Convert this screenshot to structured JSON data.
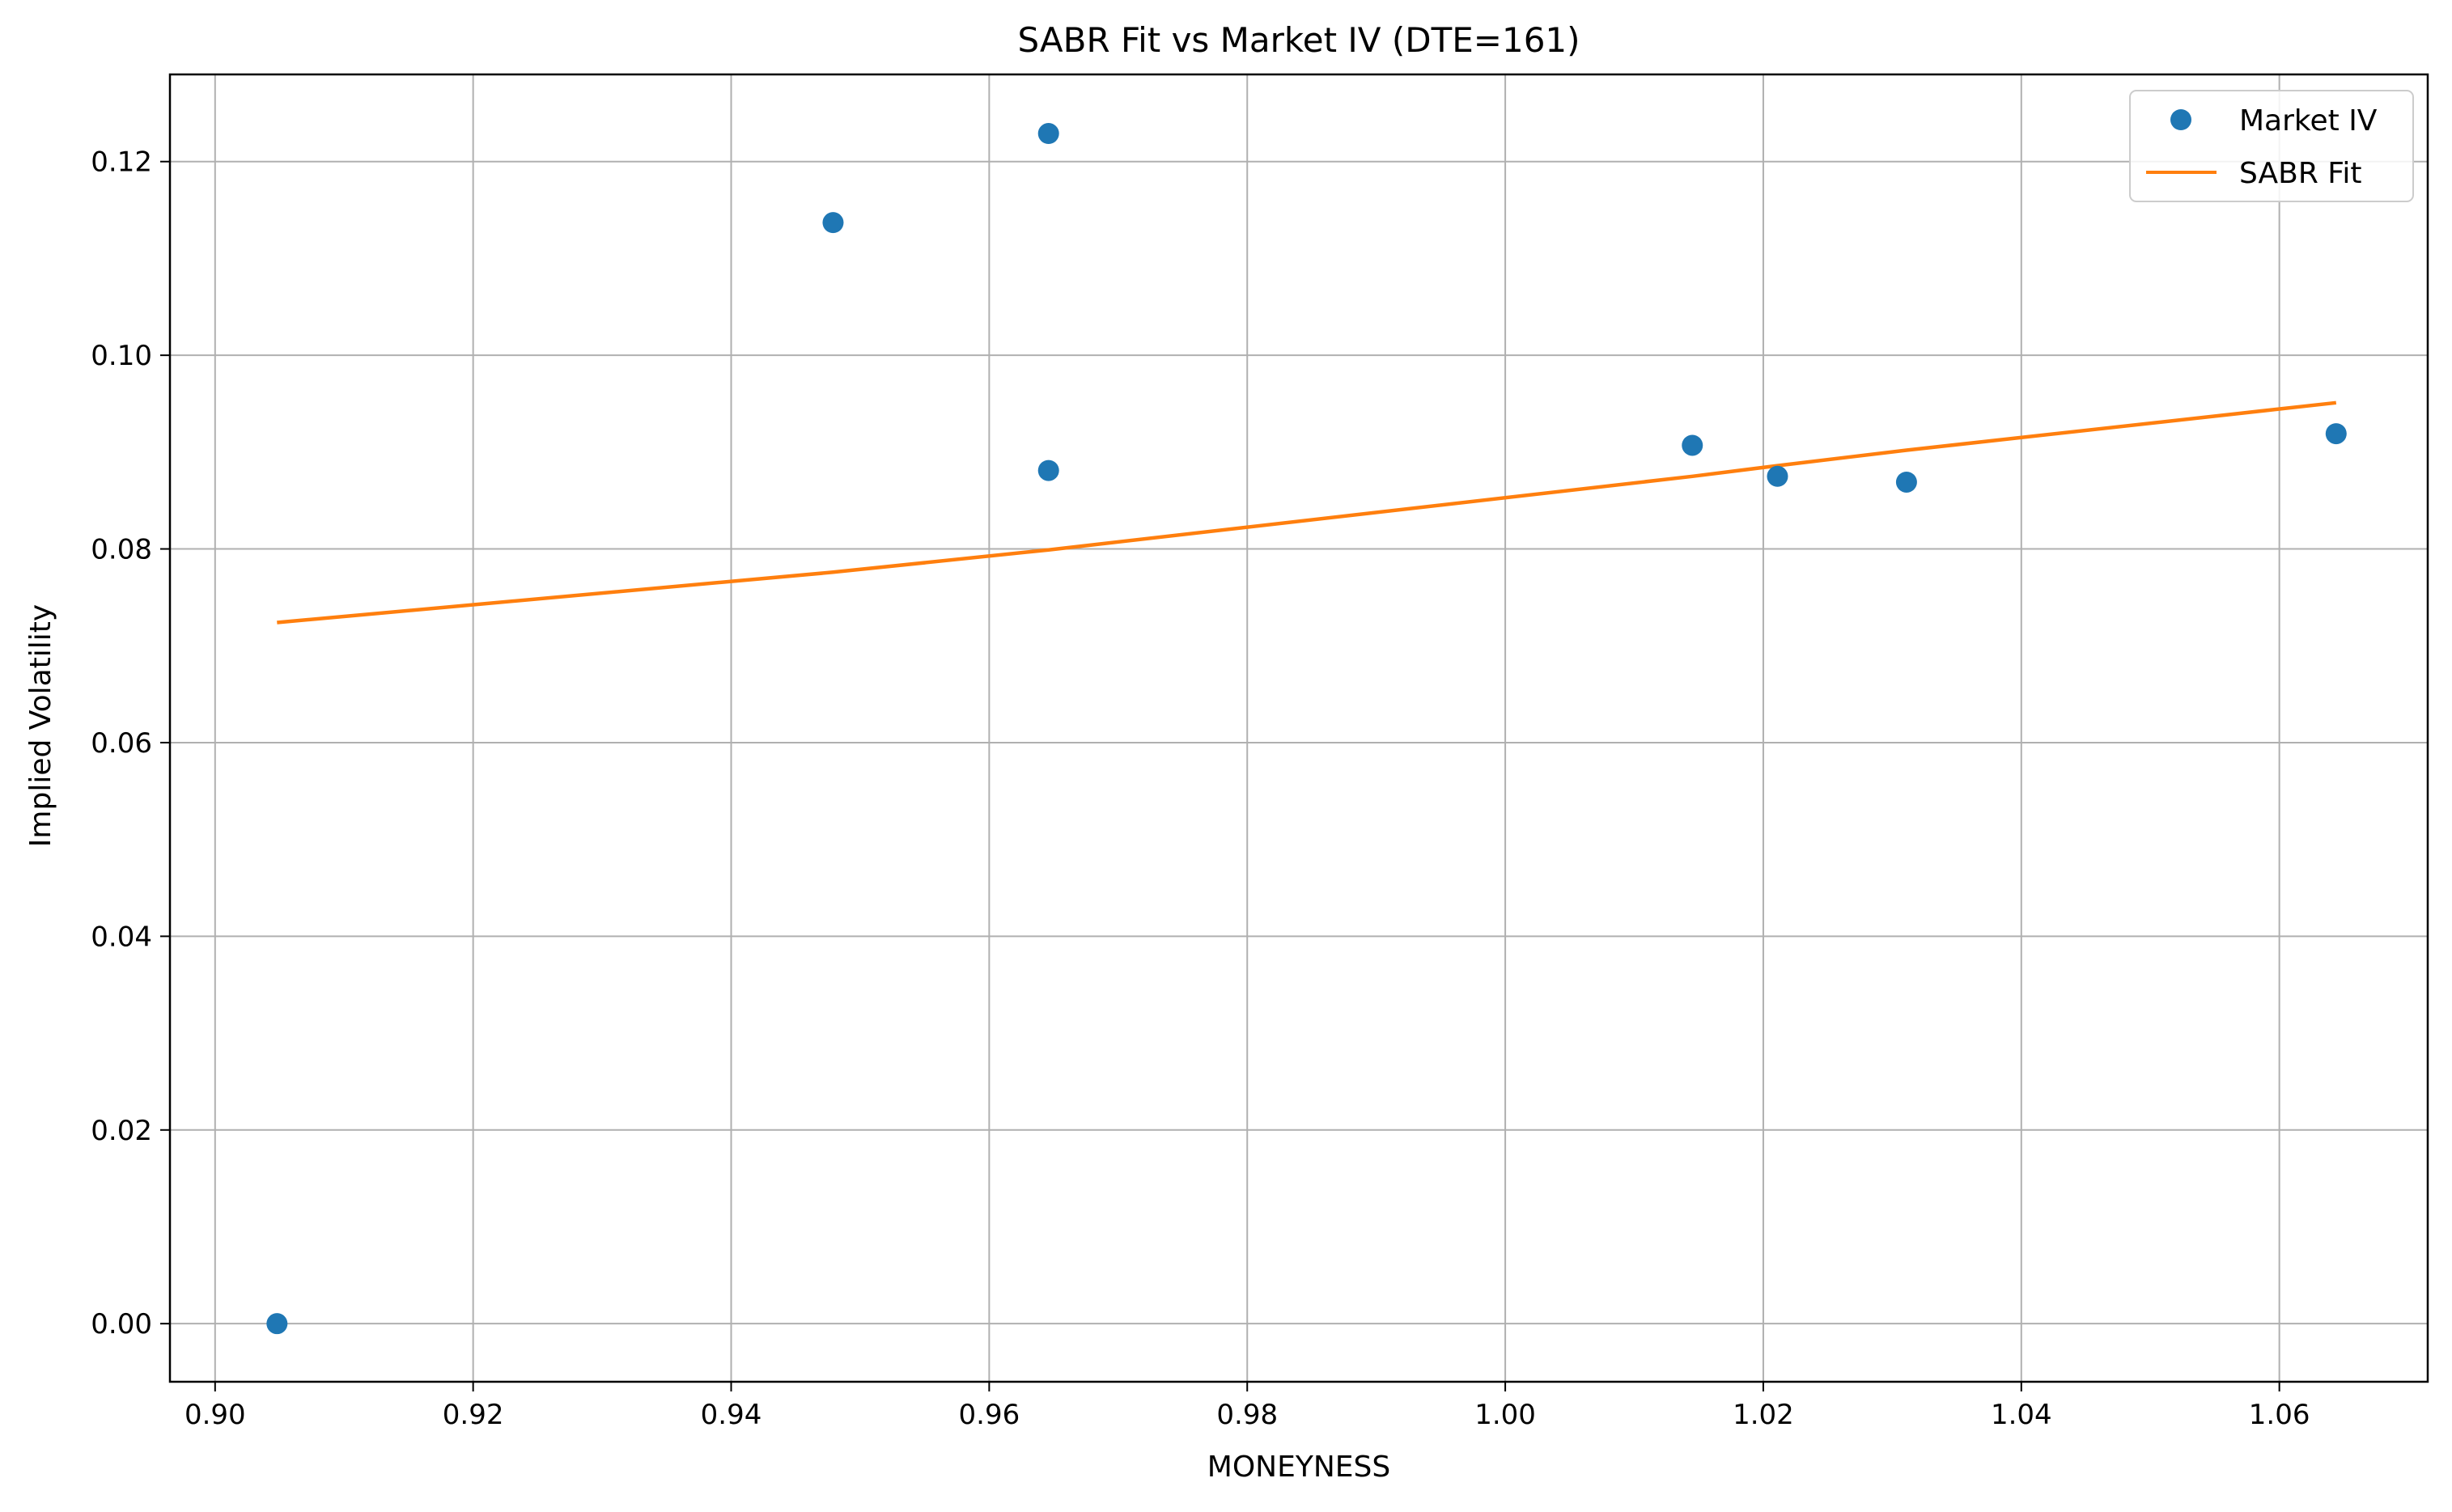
{
  "chart_data": {
    "type": "scatter",
    "title": "SABR Fit vs Market IV (DTE=161)",
    "xlabel": "MONEYNESS",
    "ylabel": "Implied Volatility",
    "xlim": [
      0.8965,
      1.0715
    ],
    "ylim": [
      -0.006,
      0.129
    ],
    "xticks": [
      0.9,
      0.92,
      0.94,
      0.96,
      0.98,
      1.0,
      1.02,
      1.04,
      1.06
    ],
    "xtick_labels": [
      "0.90",
      "0.92",
      "0.94",
      "0.96",
      "0.98",
      "1.00",
      "1.02",
      "1.04",
      "1.06"
    ],
    "yticks": [
      0.0,
      0.02,
      0.04,
      0.06,
      0.08,
      0.1,
      0.12
    ],
    "ytick_labels": [
      "0.00",
      "0.02",
      "0.04",
      "0.06",
      "0.08",
      "0.10",
      "0.12"
    ],
    "grid": true,
    "legend_position": "top-right",
    "series": [
      {
        "name": "Market IV",
        "kind": "scatter",
        "color": "#1f77b4",
        "x": [
          0.9048,
          0.9479,
          0.9646,
          0.9646,
          1.0145,
          1.0211,
          1.0311,
          1.0644
        ],
        "y": [
          0.0,
          0.1137,
          0.1229,
          0.0881,
          0.0907,
          0.0875,
          0.0869,
          0.0919
        ]
      },
      {
        "name": "SABR Fit",
        "kind": "line",
        "color": "#ff7f0e",
        "x": [
          0.9048,
          0.9479,
          0.9646,
          1.0145,
          1.0211,
          1.0311,
          1.0644
        ],
        "y": [
          0.0724,
          0.0776,
          0.0799,
          0.0875,
          0.0886,
          0.0902,
          0.0951
        ]
      }
    ]
  }
}
